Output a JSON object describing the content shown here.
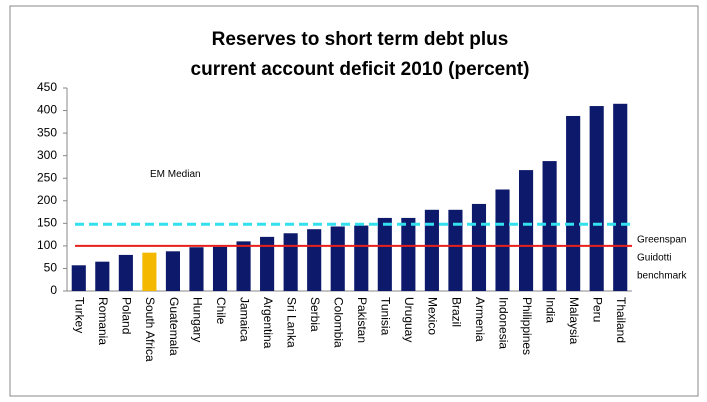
{
  "chart_data": {
    "type": "bar",
    "title": [
      "Reserves to short term debt plus",
      "current account deficit 2010 (percent)"
    ],
    "categories": [
      "Turkey",
      "Romania",
      "Poland",
      "South Africa",
      "Guatemala",
      "Hungary",
      "Chile",
      "Jamaica",
      "Argentina",
      "Sri Lanka",
      "Serbia",
      "Colombia",
      "Pakistan",
      "Tunisia",
      "Uruguay",
      "Mexico",
      "Brazil",
      "Armenia",
      "Indonesia",
      "Philippines",
      "India",
      "Malaysia",
      "Peru",
      "Thailand"
    ],
    "values": [
      57,
      65,
      80,
      85,
      88,
      97,
      98,
      110,
      120,
      128,
      137,
      143,
      145,
      162,
      162,
      180,
      180,
      193,
      225,
      268,
      288,
      388,
      410,
      415
    ],
    "colors": [
      "#0d1a6b",
      "#0d1a6b",
      "#0d1a6b",
      "#f5b800",
      "#0d1a6b",
      "#0d1a6b",
      "#0d1a6b",
      "#0d1a6b",
      "#0d1a6b",
      "#0d1a6b",
      "#0d1a6b",
      "#0d1a6b",
      "#0d1a6b",
      "#0d1a6b",
      "#0d1a6b",
      "#0d1a6b",
      "#0d1a6b",
      "#0d1a6b",
      "#0d1a6b",
      "#0d1a6b",
      "#0d1a6b",
      "#0d1a6b",
      "#0d1a6b",
      "#0d1a6b"
    ],
    "ylim": [
      0,
      450
    ],
    "yticks": [
      0,
      50,
      100,
      150,
      200,
      250,
      300,
      350,
      400,
      450
    ],
    "grid": false,
    "reference_lines": [
      {
        "label": [
          "EM Median"
        ],
        "value": 148,
        "color": "#33e0ee",
        "dashed": true
      },
      {
        "label": [
          "Greenspan",
          "Guidotti",
          "benchmark"
        ],
        "value": 100,
        "color": "#e8201c",
        "dashed": false
      }
    ]
  }
}
